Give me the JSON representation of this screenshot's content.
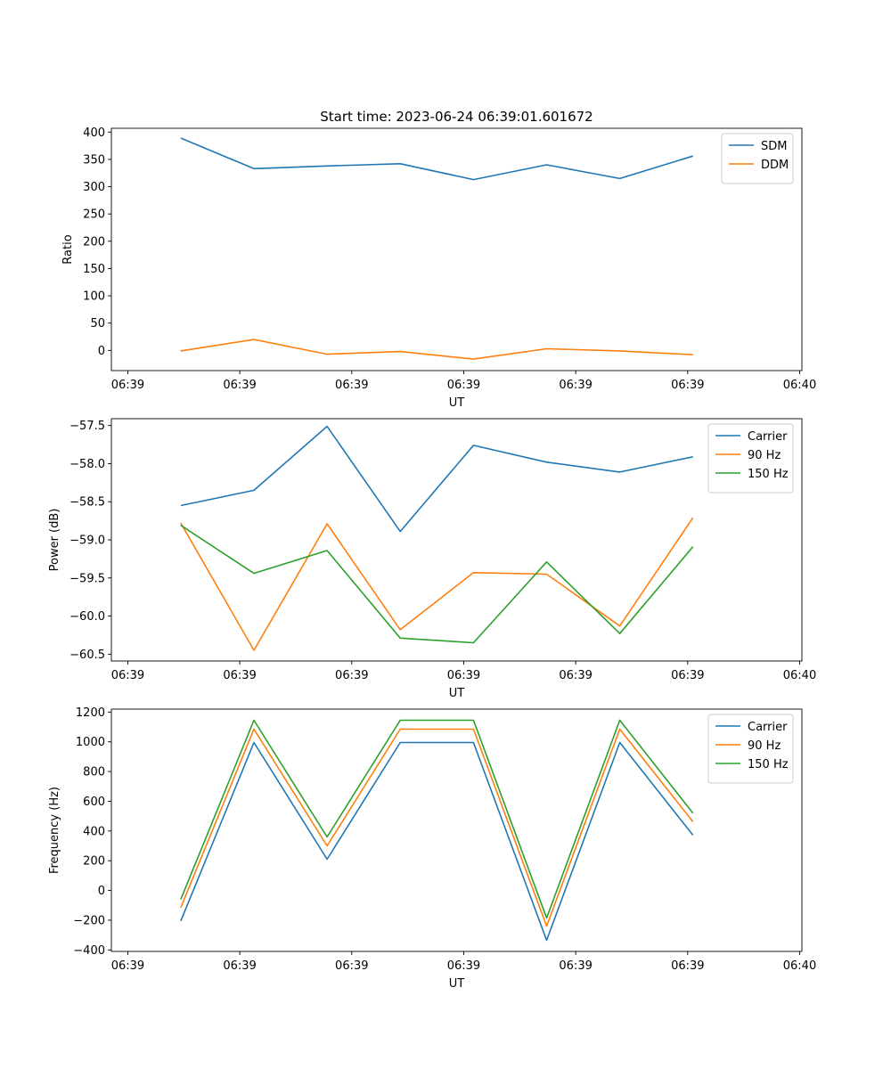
{
  "chart_data": [
    {
      "type": "line",
      "title": "Start time: 2023-06-24 06:39:01.601672",
      "xlabel": "UT",
      "ylabel": "Ratio",
      "xlim": [
        0,
        9.25
      ],
      "ylim": [
        -37,
        407
      ],
      "x_ticks": [
        0.22,
        1.72,
        3.22,
        4.72,
        6.22,
        7.72,
        9.22
      ],
      "x_tick_labels": [
        "06:39",
        "06:39",
        "06:39",
        "06:39",
        "06:39",
        "06:39",
        "06:40"
      ],
      "y_ticks": [
        0,
        50,
        100,
        150,
        200,
        250,
        300,
        350,
        400
      ],
      "y_tick_labels": [
        "0",
        "50",
        "100",
        "150",
        "200",
        "250",
        "300",
        "350",
        "400"
      ],
      "legend_position": "top-right",
      "grid": false,
      "x": [
        0.93,
        1.91,
        2.89,
        3.87,
        4.85,
        5.83,
        6.81,
        7.79
      ],
      "series": [
        {
          "name": "SDM",
          "color": "#1f77b4",
          "values": [
            389,
            333,
            338,
            342,
            313,
            340,
            315,
            356
          ]
        },
        {
          "name": "DDM",
          "color": "#ff7f0e",
          "values": [
            -1,
            20,
            -7,
            -2,
            -16,
            3,
            -1,
            -8
          ]
        }
      ]
    },
    {
      "type": "line",
      "title": "",
      "xlabel": "UT",
      "ylabel": "Power (dB)",
      "xlim": [
        0,
        9.25
      ],
      "ylim": [
        -60.59,
        -57.41
      ],
      "x_ticks": [
        0.22,
        1.72,
        3.22,
        4.72,
        6.22,
        7.72,
        9.22
      ],
      "x_tick_labels": [
        "06:39",
        "06:39",
        "06:39",
        "06:39",
        "06:39",
        "06:39",
        "06:40"
      ],
      "y_ticks": [
        -60.5,
        -60.0,
        -59.5,
        -59.0,
        -58.5,
        -58.0,
        -57.5
      ],
      "y_tick_labels": [
        "−60.5",
        "−60.0",
        "−59.5",
        "−59.0",
        "−58.5",
        "−58.0",
        "−57.5"
      ],
      "legend_position": "top-right",
      "grid": false,
      "x": [
        0.93,
        1.91,
        2.89,
        3.87,
        4.85,
        5.83,
        6.81,
        7.79
      ],
      "series": [
        {
          "name": "Carrier",
          "color": "#1f77b4",
          "values": [
            -58.55,
            -58.35,
            -57.51,
            -58.89,
            -57.76,
            -57.98,
            -58.11,
            -57.91
          ]
        },
        {
          "name": "90 Hz",
          "color": "#ff7f0e",
          "values": [
            -58.78,
            -60.45,
            -58.79,
            -60.18,
            -59.43,
            -59.45,
            -60.13,
            -58.71
          ]
        },
        {
          "name": "150 Hz",
          "color": "#2ca02c",
          "values": [
            -58.81,
            -59.44,
            -59.14,
            -60.29,
            -60.35,
            -59.29,
            -60.23,
            -59.09
          ]
        }
      ]
    },
    {
      "type": "line",
      "title": "",
      "xlabel": "UT",
      "ylabel": "Frequency (Hz)",
      "xlim": [
        0,
        9.25
      ],
      "ylim": [
        -410,
        1220
      ],
      "x_ticks": [
        0.22,
        1.72,
        3.22,
        4.72,
        6.22,
        7.72,
        9.22
      ],
      "x_tick_labels": [
        "06:39",
        "06:39",
        "06:39",
        "06:39",
        "06:39",
        "06:39",
        "06:40"
      ],
      "y_ticks": [
        -400,
        -200,
        0,
        200,
        400,
        600,
        800,
        1000,
        1200
      ],
      "y_tick_labels": [
        "−400",
        "−200",
        "0",
        "200",
        "400",
        "600",
        "800",
        "1000",
        "1200"
      ],
      "legend_position": "top-right",
      "grid": false,
      "x": [
        0.93,
        1.91,
        2.89,
        3.87,
        4.85,
        5.83,
        6.81,
        7.79
      ],
      "series": [
        {
          "name": "Carrier",
          "color": "#1f77b4",
          "values": [
            -205,
            995,
            210,
            995,
            995,
            -335,
            995,
            372
          ]
        },
        {
          "name": "90 Hz",
          "color": "#ff7f0e",
          "values": [
            -115,
            1085,
            300,
            1085,
            1085,
            -240,
            1085,
            462
          ]
        },
        {
          "name": "150 Hz",
          "color": "#2ca02c",
          "values": [
            -60,
            1145,
            360,
            1145,
            1145,
            -185,
            1145,
            520
          ]
        }
      ]
    }
  ]
}
